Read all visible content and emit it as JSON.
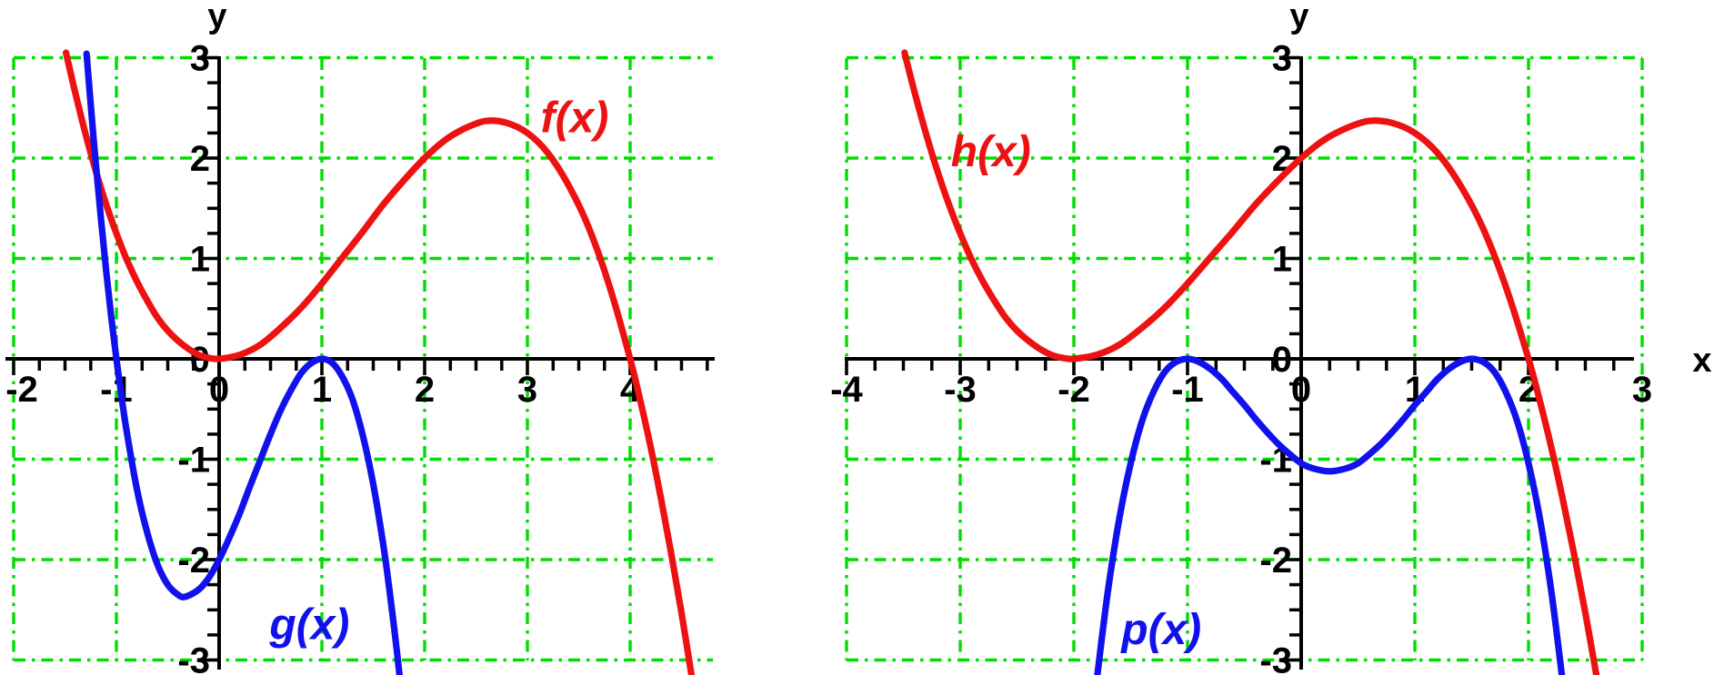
{
  "figure": {
    "background": "#ffffff",
    "axis_color": "#000000",
    "grid_color": "#00dd00",
    "red": "#ee1111",
    "blue": "#1111ee"
  },
  "chart_data": [
    {
      "type": "line",
      "title": "",
      "xlabel": "",
      "ylabel": "y",
      "xlim": [
        -2.05,
        4.8
      ],
      "ylim": [
        -3,
        3
      ],
      "grid": true,
      "grid_style": "green dash-dot lines at every integer",
      "minor_tick_step": 0.25,
      "grid_x": [
        -2,
        -1,
        1,
        2,
        3,
        4
      ],
      "grid_y": [
        -3,
        -2,
        -1,
        1,
        2,
        3
      ],
      "x_ticks": [
        {
          "v": -2,
          "label": "-2"
        },
        {
          "v": -1,
          "label": "-1"
        },
        {
          "v": 0,
          "label": "0"
        },
        {
          "v": 1,
          "label": "1"
        },
        {
          "v": 2,
          "label": "2"
        },
        {
          "v": 3,
          "label": "3"
        },
        {
          "v": 4,
          "label": "4"
        }
      ],
      "y_ticks": [
        {
          "v": 3,
          "label": "3"
        },
        {
          "v": 2,
          "label": "2"
        },
        {
          "v": 1,
          "label": "1"
        },
        {
          "v": 0,
          "label": "0"
        },
        {
          "v": -1,
          "label": "-1"
        },
        {
          "v": -2,
          "label": "-2"
        },
        {
          "v": -3,
          "label": "-3"
        }
      ],
      "series": [
        {
          "name": "f(x)",
          "color": "#ee1111",
          "formula": "f(x) = x^2(4-x)/4",
          "label_at": [
            3.46,
            2.4
          ],
          "points": [
            [
              -1.49,
              3.05
            ],
            [
              -1.4,
              2.65
            ],
            [
              -1.3,
              2.24
            ],
            [
              -1.2,
              1.87
            ],
            [
              -1.1,
              1.54
            ],
            [
              -1,
              1.25
            ],
            [
              -0.9,
              0.99
            ],
            [
              -0.8,
              0.77
            ],
            [
              -0.7,
              0.58
            ],
            [
              -0.6,
              0.41
            ],
            [
              -0.5,
              0.28
            ],
            [
              -0.4,
              0.18
            ],
            [
              -0.3,
              0.1
            ],
            [
              -0.2,
              0.04
            ],
            [
              -0.1,
              0.01
            ],
            [
              0,
              0
            ],
            [
              0.2,
              0.04
            ],
            [
              0.4,
              0.14
            ],
            [
              0.6,
              0.31
            ],
            [
              0.8,
              0.51
            ],
            [
              1,
              0.75
            ],
            [
              1.2,
              1.01
            ],
            [
              1.4,
              1.27
            ],
            [
              1.6,
              1.54
            ],
            [
              1.8,
              1.78
            ],
            [
              2,
              2
            ],
            [
              2.2,
              2.18
            ],
            [
              2.4,
              2.3
            ],
            [
              2.6,
              2.37
            ],
            [
              2.8,
              2.35
            ],
            [
              3,
              2.25
            ],
            [
              3.2,
              2.05
            ],
            [
              3.4,
              1.73
            ],
            [
              3.6,
              1.3
            ],
            [
              3.8,
              0.72
            ],
            [
              4,
              0
            ],
            [
              4.1,
              -0.42
            ],
            [
              4.2,
              -0.88
            ],
            [
              4.3,
              -1.39
            ],
            [
              4.4,
              -1.94
            ],
            [
              4.5,
              -2.53
            ],
            [
              4.6,
              -3.17
            ]
          ]
        },
        {
          "name": "g(x)",
          "color": "#1111ee",
          "formula": "g(x) = -2(x+1)(x-1)^2",
          "label_at": [
            0.88,
            -2.65
          ],
          "points": [
            [
              -1.29,
              3.04
            ],
            [
              -1.25,
              2.53
            ],
            [
              -1.2,
              1.94
            ],
            [
              -1.15,
              1.39
            ],
            [
              -1.1,
              0.88
            ],
            [
              -1.05,
              0.42
            ],
            [
              -1,
              0
            ],
            [
              -0.95,
              -0.38
            ],
            [
              -0.9,
              -0.72
            ],
            [
              -0.8,
              -1.3
            ],
            [
              -0.7,
              -1.73
            ],
            [
              -0.6,
              -2.05
            ],
            [
              -0.5,
              -2.25
            ],
            [
              -0.4,
              -2.35
            ],
            [
              -0.33,
              -2.37
            ],
            [
              -0.2,
              -2.3
            ],
            [
              -0.1,
              -2.18
            ],
            [
              0,
              -2
            ],
            [
              0.1,
              -1.78
            ],
            [
              0.2,
              -1.54
            ],
            [
              0.3,
              -1.27
            ],
            [
              0.4,
              -1.01
            ],
            [
              0.5,
              -0.75
            ],
            [
              0.6,
              -0.51
            ],
            [
              0.7,
              -0.31
            ],
            [
              0.8,
              -0.14
            ],
            [
              0.9,
              -0.04
            ],
            [
              1,
              0
            ],
            [
              1.1,
              -0.04
            ],
            [
              1.2,
              -0.18
            ],
            [
              1.3,
              -0.41
            ],
            [
              1.4,
              -0.77
            ],
            [
              1.5,
              -1.25
            ],
            [
              1.6,
              -1.87
            ],
            [
              1.65,
              -2.24
            ],
            [
              1.7,
              -2.65
            ],
            [
              1.76,
              -3.19
            ]
          ]
        }
      ]
    },
    {
      "type": "line",
      "title": "",
      "xlabel": "x",
      "ylabel": "y",
      "xlim": [
        -4.05,
        2.95
      ],
      "ylim": [
        -3,
        3
      ],
      "grid": true,
      "grid_style": "green dash-dot lines at every integer",
      "minor_tick_step": 0.25,
      "grid_x": [
        -4,
        -3,
        -2,
        -1,
        1,
        2,
        3
      ],
      "grid_y": [
        -3,
        -2,
        -1,
        1,
        2,
        3
      ],
      "x_ticks": [
        {
          "v": -4,
          "label": "-4"
        },
        {
          "v": -3,
          "label": "-3"
        },
        {
          "v": -2,
          "label": "-2"
        },
        {
          "v": -1,
          "label": "-1"
        },
        {
          "v": 0,
          "label": "0"
        },
        {
          "v": 1,
          "label": "1"
        },
        {
          "v": 2,
          "label": "2"
        },
        {
          "v": 3,
          "label": "3"
        }
      ],
      "y_ticks": [
        {
          "v": 3,
          "label": "3"
        },
        {
          "v": 2,
          "label": "2"
        },
        {
          "v": 1,
          "label": "1"
        },
        {
          "v": 0,
          "label": "0"
        },
        {
          "v": -1,
          "label": "-1"
        },
        {
          "v": -2,
          "label": "-2"
        },
        {
          "v": -3,
          "label": "-3"
        }
      ],
      "series": [
        {
          "name": "h(x)",
          "color": "#ee1111",
          "formula": "h(x) = (x+2)^2(2-x)/4",
          "label_at": [
            -2.73,
            2.06
          ],
          "points": [
            [
              -3.49,
              3.05
            ],
            [
              -3.4,
              2.65
            ],
            [
              -3.3,
              2.24
            ],
            [
              -3.2,
              1.87
            ],
            [
              -3.1,
              1.54
            ],
            [
              -3,
              1.25
            ],
            [
              -2.9,
              0.99
            ],
            [
              -2.8,
              0.77
            ],
            [
              -2.7,
              0.58
            ],
            [
              -2.6,
              0.41
            ],
            [
              -2.5,
              0.28
            ],
            [
              -2.4,
              0.18
            ],
            [
              -2.3,
              0.1
            ],
            [
              -2.2,
              0.04
            ],
            [
              -2.1,
              0.01
            ],
            [
              -2,
              0
            ],
            [
              -1.8,
              0.04
            ],
            [
              -1.6,
              0.14
            ],
            [
              -1.4,
              0.31
            ],
            [
              -1.2,
              0.51
            ],
            [
              -1,
              0.75
            ],
            [
              -0.8,
              1.01
            ],
            [
              -0.6,
              1.27
            ],
            [
              -0.4,
              1.54
            ],
            [
              -0.2,
              1.78
            ],
            [
              0,
              2
            ],
            [
              0.2,
              2.18
            ],
            [
              0.4,
              2.3
            ],
            [
              0.6,
              2.37
            ],
            [
              0.8,
              2.35
            ],
            [
              1,
              2.25
            ],
            [
              1.2,
              2.05
            ],
            [
              1.4,
              1.73
            ],
            [
              1.6,
              1.3
            ],
            [
              1.8,
              0.72
            ],
            [
              2,
              0
            ],
            [
              2.1,
              -0.42
            ],
            [
              2.2,
              -0.88
            ],
            [
              2.3,
              -1.39
            ],
            [
              2.4,
              -1.94
            ],
            [
              2.5,
              -2.53
            ],
            [
              2.6,
              -3.17
            ]
          ]
        },
        {
          "name": "p(x)",
          "color": "#1111ee",
          "formula": "p(x) = -0.46(x+1)^2(x-1.5)^2",
          "label_at": [
            -1.23,
            -2.7
          ],
          "points": [
            [
              -1.8,
              -3.21
            ],
            [
              -1.7,
              -2.31
            ],
            [
              -1.6,
              -1.59
            ],
            [
              -1.5,
              -1.04
            ],
            [
              -1.4,
              -0.62
            ],
            [
              -1.3,
              -0.33
            ],
            [
              -1.2,
              -0.13
            ],
            [
              -1.1,
              -0.03
            ],
            [
              -1,
              0
            ],
            [
              -0.9,
              -0.03
            ],
            [
              -0.8,
              -0.1
            ],
            [
              -0.7,
              -0.2
            ],
            [
              -0.6,
              -0.33
            ],
            [
              -0.5,
              -0.46
            ],
            [
              -0.4,
              -0.6
            ],
            [
              -0.3,
              -0.73
            ],
            [
              -0.2,
              -0.85
            ],
            [
              -0.1,
              -0.95
            ],
            [
              0,
              -1.04
            ],
            [
              0.1,
              -1.09
            ],
            [
              0.25,
              -1.12
            ],
            [
              0.4,
              -1.09
            ],
            [
              0.5,
              -1.04
            ],
            [
              0.6,
              -0.95
            ],
            [
              0.7,
              -0.85
            ],
            [
              0.8,
              -0.73
            ],
            [
              0.9,
              -0.6
            ],
            [
              1,
              -0.46
            ],
            [
              1.1,
              -0.33
            ],
            [
              1.2,
              -0.2
            ],
            [
              1.3,
              -0.1
            ],
            [
              1.4,
              -0.03
            ],
            [
              1.5,
              0
            ],
            [
              1.6,
              -0.03
            ],
            [
              1.7,
              -0.13
            ],
            [
              1.8,
              -0.33
            ],
            [
              1.9,
              -0.62
            ],
            [
              2,
              -1.04
            ],
            [
              2.1,
              -1.59
            ],
            [
              2.2,
              -2.31
            ],
            [
              2.3,
              -3.21
            ]
          ]
        }
      ]
    }
  ]
}
